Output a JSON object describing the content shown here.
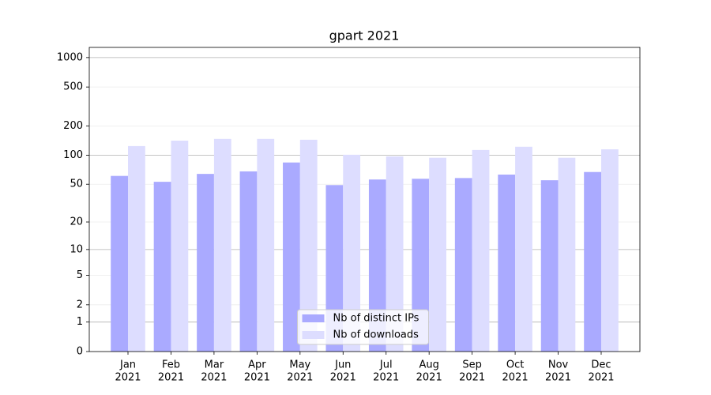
{
  "chart_data": {
    "type": "bar",
    "title": "gpart 2021",
    "categories": [
      [
        "Jan",
        "2021"
      ],
      [
        "Feb",
        "2021"
      ],
      [
        "Mar",
        "2021"
      ],
      [
        "Apr",
        "2021"
      ],
      [
        "May",
        "2021"
      ],
      [
        "Jun",
        "2021"
      ],
      [
        "Jul",
        "2021"
      ],
      [
        "Aug",
        "2021"
      ],
      [
        "Sep",
        "2021"
      ],
      [
        "Oct",
        "2021"
      ],
      [
        "Nov",
        "2021"
      ],
      [
        "Dec",
        "2021"
      ]
    ],
    "series": [
      {
        "name": "Nb of distinct IPs",
        "color": "#aaaaff",
        "values": [
          61,
          53,
          64,
          68,
          84,
          49,
          56,
          57,
          58,
          63,
          55,
          67
        ]
      },
      {
        "name": "Nb of downloads",
        "color": "#ddddff",
        "values": [
          124,
          141,
          147,
          147,
          144,
          101,
          97,
          94,
          113,
          122,
          94,
          115
        ]
      }
    ],
    "yscale": "log1p",
    "ylim": [
      0,
      1270
    ],
    "yticks": [
      0,
      1,
      2,
      5,
      10,
      20,
      50,
      100,
      200,
      500,
      1000
    ],
    "grid": true,
    "legend": "lower center"
  }
}
